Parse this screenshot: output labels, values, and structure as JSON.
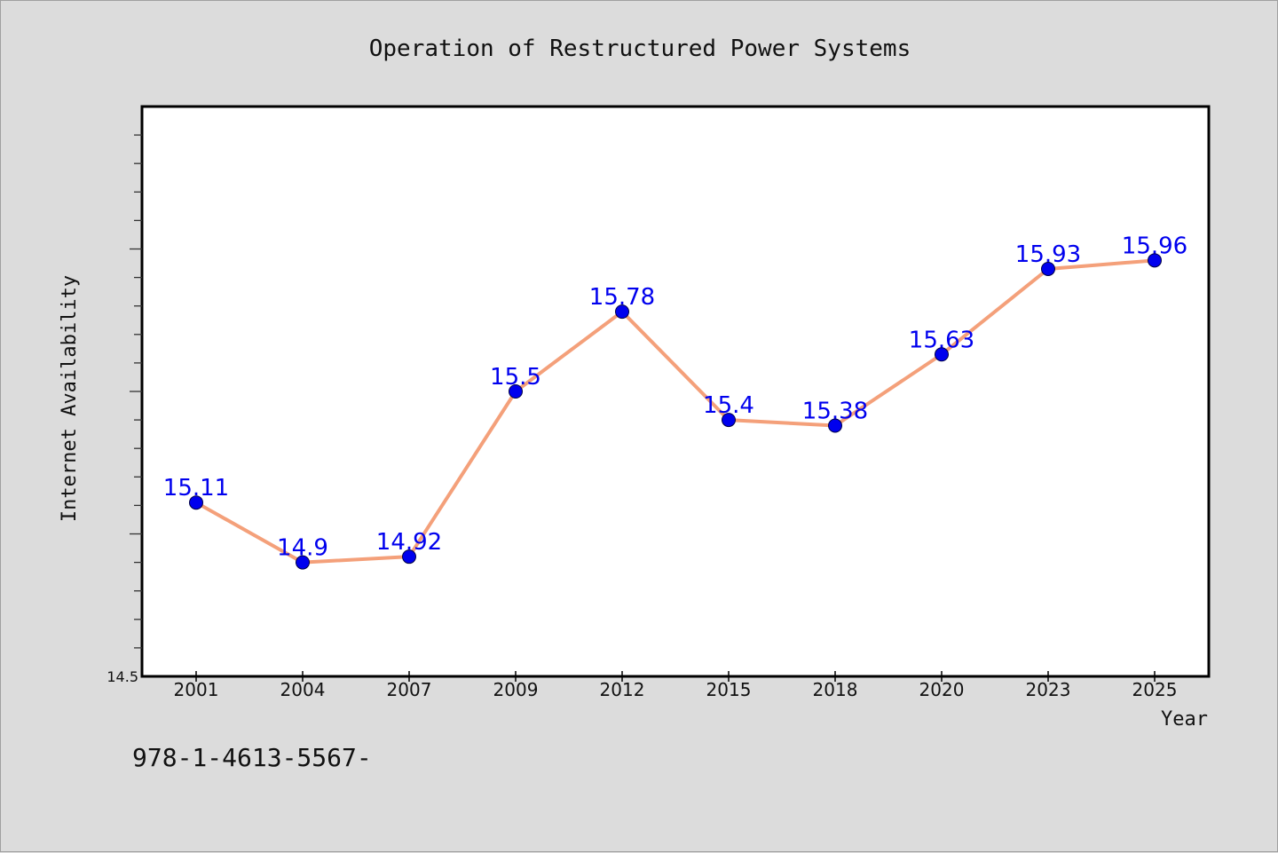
{
  "chart_data": {
    "type": "line",
    "title": "Operation of Restructured Power Systems",
    "xlabel": "Year",
    "ylabel": "Internet Availability",
    "categories": [
      "2001",
      "2004",
      "2007",
      "2009",
      "2012",
      "2015",
      "2018",
      "2020",
      "2023",
      "2025"
    ],
    "series": [
      {
        "values": [
          15.11,
          14.9,
          14.92,
          15.5,
          15.78,
          15.4,
          15.38,
          15.63,
          15.93,
          15.96
        ],
        "line_color": "#f4a07a",
        "marker_color": "#0000ee"
      }
    ],
    "data_labels": [
      "15.11",
      "14.9",
      "14.92",
      "15.5",
      "15.78",
      "15.4",
      "15.38",
      "15.63",
      "15.93",
      "15.96"
    ],
    "ylim": [
      14.5,
      16.5
    ],
    "yticks_labeled": [
      "14.5"
    ],
    "grid": false,
    "legend": "none",
    "background_color": "#dcdcdc",
    "plot_background_color": "#ffffff"
  },
  "footnote": "978-1-4613-5567-"
}
